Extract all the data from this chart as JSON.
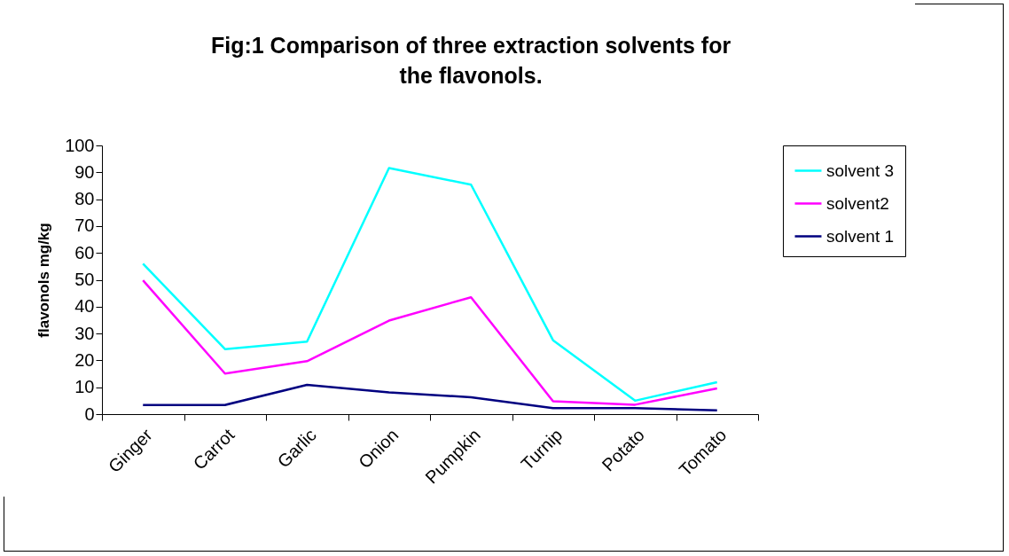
{
  "chart_data": {
    "type": "line",
    "title": "Fig:1  Comparison of three extraction solvents for the flavonols.",
    "ylabel": "flavonols mg/kg",
    "categories": [
      "Ginger",
      "Carrot",
      "Garlic",
      "Onion",
      "Pumpkin",
      "Turnip",
      "Potato",
      "Tomato"
    ],
    "series": [
      {
        "name": "solvent 3",
        "color": "#00ffff",
        "values": [
          56,
          24.2,
          27,
          91.6,
          85.4,
          27.5,
          5,
          11.9
        ]
      },
      {
        "name": "solvent2",
        "color": "#ff00ff",
        "values": [
          49.8,
          15.1,
          19.7,
          34.8,
          43.5,
          4.8,
          3.5,
          9.6
        ]
      },
      {
        "name": "solvent 1",
        "color": "#000080",
        "values": [
          3.4,
          3.4,
          10.9,
          8.1,
          6.3,
          2.2,
          2.2,
          1.4
        ]
      }
    ],
    "ylim": [
      0,
      100
    ],
    "yticks": [
      0,
      10,
      20,
      30,
      40,
      50,
      60,
      70,
      80,
      90,
      100
    ],
    "grid": false,
    "legend": "right",
    "marker": "none",
    "line_style": "solid"
  }
}
